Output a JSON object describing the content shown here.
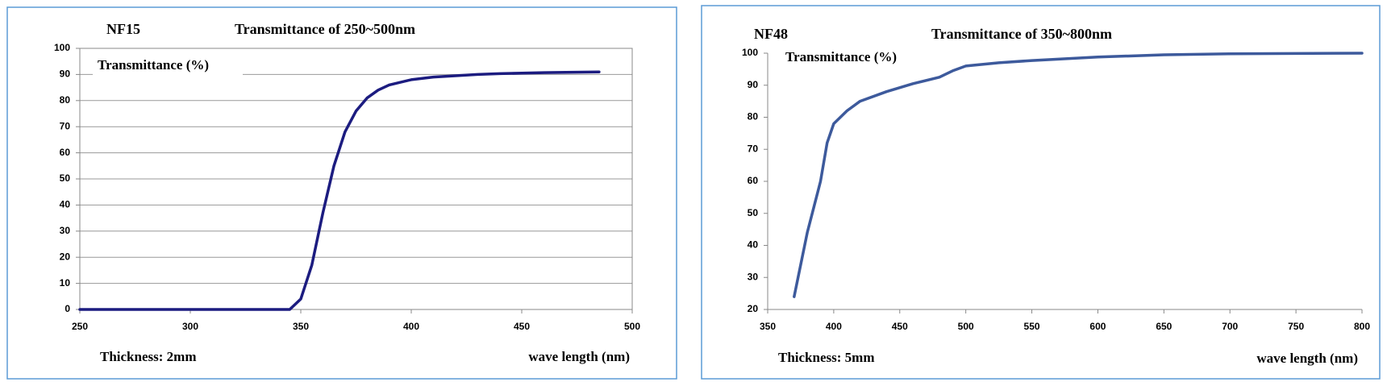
{
  "chart_data": [
    {
      "type": "line",
      "title": "NF15",
      "subtitle": "Transmittance of 250~500nm",
      "y_label": "Transmittance (%)",
      "annotation": "Thickness: 2mm",
      "x_label": "wave length (nm)",
      "x": [
        250,
        300,
        345,
        350,
        355,
        360,
        365,
        370,
        375,
        380,
        385,
        390,
        400,
        410,
        420,
        430,
        440,
        450,
        460,
        470,
        485
      ],
      "series": [
        {
          "name": "Transmittance",
          "color": "#1c1c80",
          "values": [
            0,
            0,
            0,
            4,
            17,
            37,
            55,
            68,
            76,
            81,
            84,
            86,
            88,
            89,
            89.5,
            90,
            90.3,
            90.5,
            90.7,
            90.8,
            91
          ]
        }
      ],
      "xlim": [
        250,
        500
      ],
      "xticks": [
        250,
        300,
        350,
        400,
        450,
        500
      ],
      "ylim": [
        0,
        100
      ],
      "yticks": [
        0,
        10,
        20,
        30,
        40,
        50,
        60,
        70,
        80,
        90,
        100
      ],
      "grid": true
    },
    {
      "type": "line",
      "title": "NF48",
      "subtitle": "Transmittance of 350~800nm",
      "y_label": "Transmittance (%)",
      "annotation": "Thickness: 5mm",
      "x_label": "wave length (nm)",
      "x": [
        370,
        380,
        390,
        395,
        400,
        410,
        420,
        440,
        460,
        480,
        490,
        500,
        525,
        550,
        600,
        650,
        700,
        800
      ],
      "series": [
        {
          "name": "Transmittance",
          "color": "#3d5a9c",
          "values": [
            24,
            44,
            60,
            72,
            78,
            82,
            85,
            88,
            90.5,
            92.5,
            94.5,
            96,
            97,
            97.7,
            98.8,
            99.5,
            99.8,
            100
          ]
        }
      ],
      "xlim": [
        350,
        800
      ],
      "xticks": [
        350,
        400,
        450,
        500,
        550,
        600,
        650,
        700,
        750,
        800
      ],
      "ylim": [
        20,
        100
      ],
      "yticks": [
        20,
        30,
        40,
        50,
        60,
        70,
        80,
        90,
        100
      ],
      "grid": false
    }
  ]
}
